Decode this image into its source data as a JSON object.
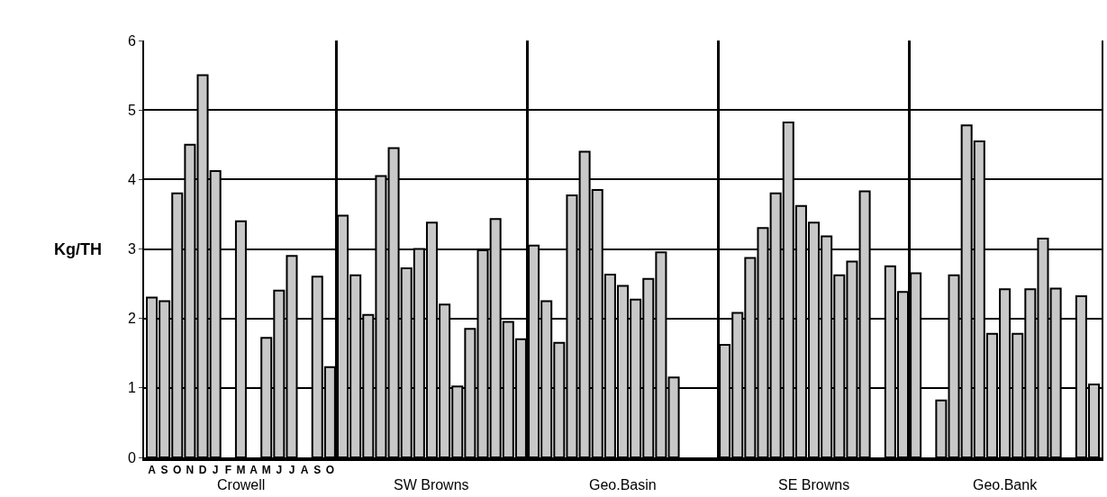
{
  "chart_data": {
    "type": "bar",
    "ylabel": "Kg/TH",
    "categories": [
      "A",
      "S",
      "O",
      "N",
      "D",
      "J",
      "F",
      "M",
      "A",
      "M",
      "J",
      "J",
      "A",
      "S",
      "O",
      null,
      null,
      null,
      null,
      null,
      null,
      null,
      null,
      null,
      null,
      null,
      null,
      null,
      null,
      null,
      null,
      null,
      null,
      null,
      null,
      null,
      null,
      null,
      null,
      null,
      null,
      null,
      null,
      null,
      null,
      null,
      null,
      null,
      null,
      null,
      null,
      null,
      null,
      null,
      null,
      null,
      null,
      null,
      null,
      null,
      null,
      null,
      null,
      null,
      null,
      null,
      null,
      null,
      null,
      null,
      null,
      null,
      null,
      null,
      null
    ],
    "values": [
      2.3,
      2.25,
      3.8,
      4.5,
      5.5,
      4.12,
      null,
      3.4,
      null,
      1.72,
      2.4,
      2.9,
      null,
      2.6,
      1.3,
      3.48,
      2.62,
      2.05,
      4.05,
      4.45,
      2.72,
      3.0,
      3.38,
      2.2,
      1.02,
      1.85,
      2.98,
      3.43,
      1.95,
      1.7,
      3.05,
      2.25,
      1.65,
      3.77,
      4.4,
      3.85,
      2.63,
      2.47,
      2.27,
      2.57,
      2.95,
      1.15,
      null,
      null,
      null,
      1.62,
      2.08,
      2.87,
      3.3,
      3.8,
      4.82,
      3.62,
      3.38,
      3.18,
      2.62,
      2.82,
      3.83,
      null,
      2.75,
      2.38,
      2.65,
      null,
      0.82,
      2.62,
      4.78,
      4.55,
      1.78,
      2.42,
      1.78,
      2.42,
      3.15,
      2.43,
      null,
      2.32,
      1.05
    ],
    "color": "#c8c8c8",
    "annotations": [
      "Crowell",
      "SW Browns",
      "Geo.Basin",
      "SE Browns",
      "Geo.Bank"
    ],
    "ylim": [
      0,
      6
    ],
    "yticks": [
      0,
      1,
      2,
      3,
      4,
      5,
      6
    ],
    "grid": "y"
  }
}
